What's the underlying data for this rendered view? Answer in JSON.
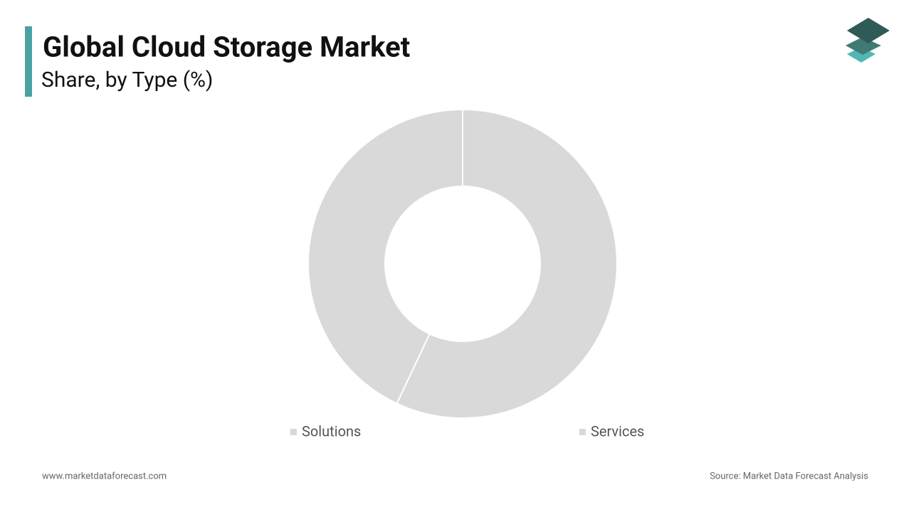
{
  "chart_data": {
    "type": "pie",
    "title": "Global Cloud Storage Market",
    "subtitle": "Share, by Type (%)",
    "categories": [
      "Solutions",
      "Services"
    ],
    "values": [
      57,
      43
    ],
    "colors": [
      "#d9d9d9",
      "#d9d9d9"
    ],
    "donut": true,
    "website": "www.marketdataforecast.com",
    "source": "Source: Market Data Forecast Analysis"
  }
}
